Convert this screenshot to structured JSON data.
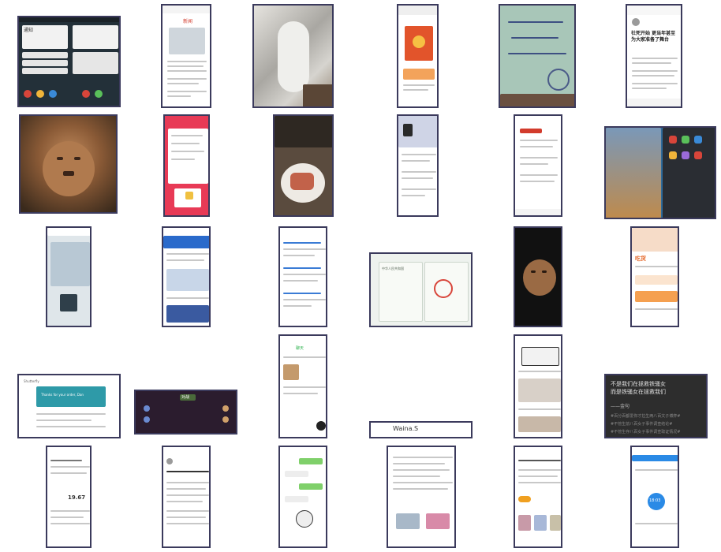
{
  "tiles": [
    {
      "id": "t01",
      "kind": "screenshot",
      "color": "#2a3a44",
      "accent": "#e8e8e8"
    },
    {
      "id": "t02",
      "kind": "screenshot",
      "color": "#ffffff",
      "accent": "#d23b2c"
    },
    {
      "id": "t03",
      "kind": "photo",
      "color": "#b9b7b2",
      "accent": "#8f8d88"
    },
    {
      "id": "t04",
      "kind": "screenshot",
      "color": "#ffffff",
      "accent": "#e2542b"
    },
    {
      "id": "t05",
      "kind": "photo",
      "color": "#a8c6b8",
      "accent": "#4a5a88"
    },
    {
      "id": "t06",
      "kind": "screenshot",
      "color": "#ffffff",
      "accent": "#222222"
    },
    {
      "id": "t07",
      "kind": "photo",
      "color": "#7c5a3a",
      "accent": "#c49a6c"
    },
    {
      "id": "t08",
      "kind": "screenshot",
      "color": "#e83a56",
      "accent": "#ffffff"
    },
    {
      "id": "t09",
      "kind": "photo",
      "color": "#5a4b3e",
      "accent": "#d9a27f"
    },
    {
      "id": "t10",
      "kind": "screenshot",
      "color": "#ffffff",
      "accent": "#5a5a5a"
    },
    {
      "id": "t11",
      "kind": "screenshot",
      "color": "#ffffff",
      "accent": "#d23b2c"
    },
    {
      "id": "t12",
      "kind": "screenshot",
      "color": "#2e6a9a",
      "accent": "#c08a4a"
    },
    {
      "id": "t13",
      "kind": "screenshot",
      "color": "#dfe6ea",
      "accent": "#2f3f4a"
    },
    {
      "id": "t14",
      "kind": "screenshot",
      "color": "#ffffff",
      "accent": "#2a6acb"
    },
    {
      "id": "t15",
      "kind": "screenshot",
      "color": "#ffffff",
      "accent": "#3a7bd5"
    },
    {
      "id": "t16",
      "kind": "photo",
      "color": "#eef2ee",
      "accent": "#d8453a"
    },
    {
      "id": "t17",
      "kind": "photo",
      "color": "#111111",
      "accent": "#9a6a44"
    },
    {
      "id": "t18",
      "kind": "screenshot",
      "color": "#ffffff",
      "accent": "#e66a2c"
    },
    {
      "id": "t19",
      "kind": "screenshot",
      "color": "#ffffff",
      "accent": "#2e9aa8"
    },
    {
      "id": "t20",
      "kind": "screenshot",
      "color": "#2b1c2e",
      "accent": "#6a8ad0"
    },
    {
      "id": "t21",
      "kind": "screenshot",
      "color": "#ffffff",
      "accent": "#2bb24c"
    },
    {
      "id": "t22",
      "kind": "screenshot",
      "color": "#ffffff",
      "accent": "#f0a020"
    },
    {
      "id": "t23",
      "kind": "screenshot",
      "color": "#ffffff",
      "accent": "#333333"
    },
    {
      "id": "t24",
      "kind": "screenshot",
      "color": "#ffffff",
      "accent": "#5a5a5a"
    },
    {
      "id": "t25",
      "kind": "screenshot",
      "color": "#ffffff",
      "accent": "#2a8a3a"
    },
    {
      "id": "t26",
      "kind": "screenshot",
      "color": "#ffffff",
      "accent": "#7fd06a"
    },
    {
      "id": "t27",
      "kind": "screenshot",
      "color": "#ffffff",
      "accent": "#555555"
    },
    {
      "id": "t28",
      "kind": "screenshot",
      "color": "#ffffff",
      "accent": "#f0a020"
    },
    {
      "id": "t29",
      "kind": "screenshot",
      "color": "#ffffff",
      "accent": "#2a8ae6"
    }
  ],
  "texts": {
    "t06_headline": "社死开始 更当年甚至为大家准备了舞台",
    "t02_title": "新闻",
    "t01_title": "通知",
    "t27_title": "Waina.S",
    "t30_quote_1": "不是我们在拯救铁骚女",
    "t30_quote_2": "而是铁骚女在拯救我们",
    "t30_quote_3": "——金句",
    "t30_tag_1": "#百分百都爱你才拉生两八百文子博弈#",
    "t30_tag_2": "#不管生前八百女子事件调查结论#",
    "t30_tag_3": "#不管生存八百女子事件调查取证情况#",
    "t19_heading": "Thanks for your order, Dan",
    "t19_logo": "Shutterfly",
    "t22_price": "19.67",
    "t24_brand": "吃货",
    "t16_stamp": "中华人民共和国",
    "t29_time": "18:03",
    "t20_banner": "对战",
    "t21_heading": "聊天"
  }
}
